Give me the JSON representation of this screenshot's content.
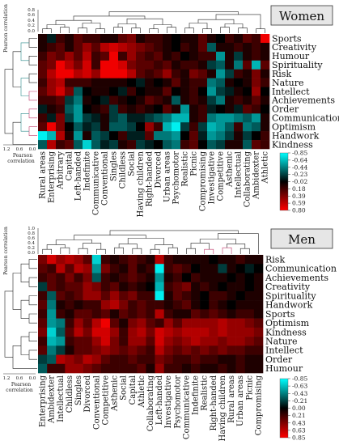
{
  "panels": [
    {
      "title": "Women",
      "rows": [
        "Sports",
        "Creativity",
        "Humour",
        "Spirituality",
        "Risk",
        "Nature",
        "Intellect",
        "Achievements",
        "Order",
        "Communication",
        "Optimism",
        "Handwork",
        "Kindness"
      ],
      "cols": [
        "Rural areas",
        "Enterprising",
        "Arbitrary",
        "Capital",
        "Left-handed",
        "Indefinite",
        "Communicative",
        "Conventional",
        "Singles",
        "Childless",
        "Social",
        "Having children",
        "Right-handed",
        "Divorced",
        "Urban areas",
        "Psychomotor",
        "Realistic",
        "Picnic",
        "Compromising",
        "Investigative",
        "Competitive",
        "Asthenic",
        "Intellectual",
        "Collaborating",
        "Ambidexter",
        "Athletic"
      ],
      "dendro_label": "Pearson correlation",
      "top_ticks": [
        "0.8",
        "0.6",
        "0.4",
        "0.2",
        "0.0"
      ],
      "left_ticks": [
        "1.2",
        "0.6",
        "0.0"
      ],
      "legend_ticks": [
        "-0.85",
        "-0.64",
        "-0.44",
        "-0.23",
        "-0.02",
        "0.18",
        "0.39",
        "0.59",
        "0.80"
      ]
    },
    {
      "title": "Men",
      "rows": [
        "Risk",
        "Communication",
        "Achievements",
        "Creativity",
        "Spirituality",
        "Handwork",
        "Sports",
        "Optimism",
        "Kindness",
        "Nature",
        "Intellect",
        "Order",
        "Humour"
      ],
      "cols": [
        "Enterprising",
        "Ambidexter",
        "Intellectual",
        "Childless",
        "Singles",
        "Divorced",
        "Conventional",
        "Competitive",
        "Asthenic",
        "Social",
        "Capital",
        "Athletic",
        "Collaborating",
        "Left-handed",
        "Investigative",
        "Psychomotor",
        "Communicative",
        "Indefinite",
        "Realistic",
        "Right-handed",
        "Having children",
        "Rural areas",
        "Urban areas",
        "Picnic",
        "Compromising"
      ],
      "dendro_label": "Pearson correlation",
      "top_ticks": [
        "1.0",
        "0.8",
        "0.6",
        "0.4",
        "0.2",
        "0.0"
      ],
      "left_ticks": [
        "1.2",
        "0.6",
        "0.0"
      ],
      "legend_ticks": [
        "-0.85",
        "-0.63",
        "-0.43",
        "-0.21",
        "0.00",
        "0.21",
        "0.43",
        "0.63",
        "0.85"
      ]
    }
  ],
  "chart_data": [
    {
      "type": "heatmap",
      "title": "Women",
      "rows": [
        "Sports",
        "Creativity",
        "Humour",
        "Spirituality",
        "Risk",
        "Nature",
        "Intellect",
        "Achievements",
        "Order",
        "Communication",
        "Optimism",
        "Handwork",
        "Kindness"
      ],
      "columns": [
        "Rural areas",
        "Enterprising",
        "Arbitrary",
        "Capital",
        "Left-handed",
        "Indefinite",
        "Communicative",
        "Conventional",
        "Singles",
        "Childless",
        "Social",
        "Having children",
        "Right-handed",
        "Divorced",
        "Urban areas",
        "Psychomotor",
        "Realistic",
        "Picnic",
        "Compromising",
        "Investigative",
        "Competitive",
        "Asthenic",
        "Intellectual",
        "Collaborating",
        "Ambidexter",
        "Athletic"
      ],
      "values": [
        [
          0.1,
          -0.1,
          0.2,
          0.1,
          0.3,
          0.2,
          0.2,
          0.1,
          0.1,
          0.3,
          0.4,
          0.1,
          0.2,
          0.2,
          0.1,
          0.0,
          0.1,
          0.1,
          0.3,
          0.1,
          0.0,
          0.2,
          0.1,
          0.3,
          0.2,
          0.8
        ],
        [
          0.1,
          0.2,
          0.3,
          0.1,
          0.3,
          0.5,
          0.3,
          0.6,
          0.7,
          0.6,
          0.5,
          0.4,
          0.3,
          0.2,
          0.1,
          0.0,
          0.2,
          0.1,
          0.3,
          -0.3,
          0.1,
          0.1,
          0.2,
          0.1,
          0.2,
          0.1
        ],
        [
          0.2,
          0.4,
          0.3,
          0.5,
          0.3,
          0.6,
          0.2,
          0.3,
          0.8,
          0.2,
          0.5,
          0.3,
          0.2,
          0.3,
          0.1,
          0.2,
          0.0,
          0.1,
          0.2,
          0.2,
          -0.5,
          0.1,
          -0.2,
          0.1,
          0.2,
          0.1
        ],
        [
          0.3,
          0.4,
          0.8,
          0.6,
          0.4,
          0.7,
          0.2,
          0.8,
          0.8,
          0.7,
          0.4,
          0.3,
          0.3,
          0.2,
          0.3,
          0.1,
          0.2,
          0.2,
          0.1,
          -0.2,
          -0.3,
          0.1,
          -0.4,
          0.3,
          -0.6,
          0.3
        ],
        [
          0.3,
          0.6,
          0.8,
          0.8,
          0.6,
          0.7,
          0.5,
          0.8,
          0.8,
          0.8,
          0.6,
          0.3,
          0.2,
          0.3,
          0.5,
          0.2,
          0.1,
          0.4,
          0.3,
          0.1,
          -0.5,
          -0.2,
          0.2,
          0.1,
          0.4,
          0.1
        ],
        [
          0.2,
          0.5,
          0.6,
          0.2,
          0.2,
          0.2,
          0.1,
          0.1,
          0.1,
          0.1,
          0.0,
          -0.1,
          0.1,
          0.0,
          0.1,
          0.3,
          0.1,
          0.2,
          0.2,
          -0.4,
          -0.3,
          0.1,
          0.0,
          0.1,
          0.4,
          0.2
        ],
        [
          0.3,
          0.5,
          0.7,
          0.4,
          -0.3,
          0.0,
          0.1,
          0.1,
          0.0,
          -0.1,
          0.2,
          0.0,
          0.1,
          0.1,
          0.3,
          0.0,
          0.1,
          0.2,
          0.0,
          -0.5,
          -0.2,
          -0.1,
          0.1,
          0.0,
          0.5,
          0.0
        ],
        [
          0.2,
          0.2,
          0.3,
          -0.2,
          -0.4,
          0.1,
          0.0,
          -0.1,
          0.2,
          0.1,
          0.0,
          0.1,
          0.3,
          0.2,
          0.1,
          -0.3,
          0.1,
          0.2,
          0.1,
          -0.2,
          -0.4,
          0.1,
          0.2,
          0.1,
          0.3,
          0.1
        ],
        [
          -0.1,
          0.1,
          0.2,
          -0.3,
          -0.5,
          0.0,
          0.1,
          0.2,
          -0.2,
          0.2,
          0.1,
          0.2,
          0.1,
          0.0,
          0.3,
          0.1,
          -0.5,
          0.1,
          0.2,
          -0.1,
          0.0,
          0.1,
          -0.1,
          0.3,
          0.2,
          0.0
        ],
        [
          0.2,
          -0.1,
          0.4,
          -0.2,
          -0.5,
          -0.2,
          -0.1,
          0.1,
          -0.2,
          -0.3,
          -0.1,
          -0.1,
          -0.2,
          -0.3,
          -0.4,
          -0.6,
          -0.6,
          0.1,
          0.2,
          -0.4,
          -0.5,
          -0.5,
          -0.4,
          -0.3,
          -0.5,
          0.1
        ],
        [
          0.3,
          0.8,
          0.4,
          0.0,
          -0.3,
          -0.1,
          -0.2,
          0.1,
          -0.3,
          -0.3,
          -0.2,
          0.0,
          0.5,
          0.2,
          -0.6,
          -0.8,
          -0.2,
          0.2,
          -0.2,
          -0.6,
          -0.5,
          -0.3,
          0.2,
          -0.4,
          -0.3,
          0.1
        ],
        [
          -0.8,
          -0.6,
          0.6,
          0.1,
          -0.5,
          0.1,
          -0.3,
          -0.2,
          0.0,
          0.2,
          -0.1,
          -0.1,
          0.3,
          -0.4,
          -0.4,
          -0.5,
          0.0,
          0.3,
          -0.1,
          -0.5,
          -0.4,
          -0.2,
          0.1,
          -0.2,
          0.0,
          0.2
        ],
        [
          -0.3,
          0.6,
          0.2,
          0.3,
          -0.3,
          -0.7,
          -0.3,
          -0.1,
          -0.2,
          0.1,
          0.2,
          -0.2,
          -0.1,
          0.0,
          -0.3,
          -0.4,
          0.2,
          0.3,
          0.0,
          -0.3,
          -0.2,
          0.1,
          0.1,
          -0.3,
          0.3,
          0.2
        ]
      ],
      "colorbar": {
        "min": -0.85,
        "max": 0.8,
        "low_color": "#00ffff",
        "mid_color": "#000000",
        "high_color": "#ff0000"
      }
    },
    {
      "type": "heatmap",
      "title": "Men",
      "rows": [
        "Risk",
        "Communication",
        "Achievements",
        "Creativity",
        "Spirituality",
        "Handwork",
        "Sports",
        "Optimism",
        "Kindness",
        "Nature",
        "Intellect",
        "Order",
        "Humour"
      ],
      "columns": [
        "Enterprising",
        "Ambidexter",
        "Intellectual",
        "Childless",
        "Singles",
        "Divorced",
        "Conventional",
        "Competitive",
        "Asthenic",
        "Social",
        "Capital",
        "Athletic",
        "Collaborating",
        "Left-handed",
        "Investigative",
        "Psychomotor",
        "Communicative",
        "Indefinite",
        "Realistic",
        "Right-handed",
        "Having children",
        "Rural areas",
        "Urban areas",
        "Picnic",
        "Compromising"
      ],
      "values": [
        [
          0.4,
          0.7,
          0.5,
          0.6,
          0.5,
          0.3,
          -0.7,
          0.2,
          0.1,
          0.2,
          0.3,
          0.2,
          0.1,
          0.6,
          0.2,
          0.1,
          0.1,
          0.1,
          0.1,
          0.0,
          0.1,
          0.1,
          0.2,
          0.1,
          0.1
        ],
        [
          0.3,
          0.2,
          0.6,
          0.3,
          0.6,
          0.5,
          -0.5,
          0.4,
          0.2,
          0.1,
          0.3,
          0.1,
          0.2,
          -0.8,
          0.2,
          0.3,
          0.2,
          0.0,
          0.1,
          0.1,
          -0.2,
          0.1,
          0.0,
          -0.1,
          0.0
        ],
        [
          0.2,
          0.3,
          0.2,
          0.4,
          0.2,
          0.4,
          -0.3,
          0.2,
          0.1,
          0.2,
          0.3,
          0.2,
          0.1,
          -0.5,
          0.1,
          0.2,
          0.0,
          0.2,
          0.1,
          0.1,
          0.1,
          0.0,
          0.1,
          0.0,
          0.1
        ],
        [
          -0.2,
          0.3,
          0.2,
          0.3,
          0.3,
          0.5,
          0.4,
          0.2,
          0.3,
          0.1,
          0.2,
          0.1,
          0.0,
          -0.6,
          0.2,
          0.3,
          0.4,
          0.1,
          0.2,
          0.1,
          0.0,
          0.1,
          0.1,
          0.0,
          0.1
        ],
        [
          0.2,
          -0.3,
          0.3,
          0.2,
          0.3,
          0.5,
          0.5,
          0.3,
          0.5,
          0.3,
          0.4,
          0.2,
          0.2,
          -0.8,
          0.1,
          0.3,
          0.2,
          0.1,
          0.0,
          0.2,
          0.2,
          0.1,
          0.0,
          0.1,
          0.1
        ],
        [
          0.3,
          -0.4,
          0.1,
          0.2,
          0.1,
          0.2,
          0.2,
          0.5,
          0.6,
          0.4,
          0.2,
          0.3,
          0.2,
          0.2,
          0.1,
          0.2,
          0.3,
          0.1,
          0.0,
          0.2,
          0.1,
          0.0,
          0.1,
          0.1,
          0.1
        ],
        [
          0.2,
          -0.5,
          0.2,
          0.1,
          0.3,
          0.3,
          0.2,
          0.3,
          0.1,
          0.3,
          0.2,
          0.3,
          0.2,
          0.6,
          0.2,
          0.1,
          0.1,
          0.3,
          0.2,
          0.3,
          0.2,
          0.1,
          0.2,
          0.2,
          0.1
        ],
        [
          0.3,
          -0.5,
          -0.4,
          0.2,
          0.5,
          0.3,
          0.6,
          0.8,
          0.3,
          0.1,
          0.4,
          0.5,
          0.3,
          0.2,
          0.5,
          0.3,
          0.5,
          0.5,
          0.5,
          0.5,
          0.6,
          0.5,
          0.5,
          0.4,
          0.3
        ],
        [
          0.4,
          -0.7,
          -0.3,
          0.3,
          0.6,
          0.4,
          0.7,
          0.7,
          0.5,
          0.2,
          0.5,
          0.6,
          0.4,
          0.7,
          0.6,
          0.5,
          0.6,
          0.6,
          0.6,
          0.5,
          0.6,
          0.5,
          0.5,
          0.5,
          0.4
        ],
        [
          0.2,
          -0.6,
          -0.5,
          0.2,
          0.3,
          0.3,
          0.5,
          0.7,
          0.4,
          0.2,
          0.5,
          0.5,
          0.3,
          0.7,
          0.5,
          0.4,
          0.5,
          0.6,
          0.5,
          0.5,
          0.4,
          0.5,
          0.5,
          0.4,
          0.3
        ],
        [
          0.3,
          -0.4,
          -0.2,
          0.1,
          0.3,
          0.3,
          0.4,
          0.5,
          0.4,
          0.3,
          0.4,
          0.3,
          0.2,
          0.6,
          0.4,
          0.3,
          0.4,
          0.3,
          0.4,
          0.3,
          0.4,
          0.3,
          0.3,
          0.2,
          0.2
        ],
        [
          -0.2,
          -0.3,
          0.6,
          0.5,
          0.4,
          0.6,
          0.5,
          0.3,
          0.2,
          0.2,
          0.3,
          0.2,
          0.2,
          0.4,
          0.3,
          0.2,
          0.2,
          0.3,
          0.2,
          0.2,
          0.1,
          0.1,
          0.2,
          0.1,
          0.1
        ],
        [
          -0.3,
          0.2,
          0.2,
          0.5,
          0.5,
          0.4,
          0.3,
          0.2,
          0.2,
          0.2,
          0.2,
          0.3,
          0.1,
          0.5,
          0.2,
          0.2,
          0.1,
          0.2,
          0.1,
          0.1,
          0.2,
          0.1,
          0.2,
          0.1,
          0.1
        ]
      ],
      "colorbar": {
        "min": -0.85,
        "max": 0.85,
        "low_color": "#00ffff",
        "mid_color": "#000000",
        "high_color": "#ff0000"
      }
    }
  ]
}
